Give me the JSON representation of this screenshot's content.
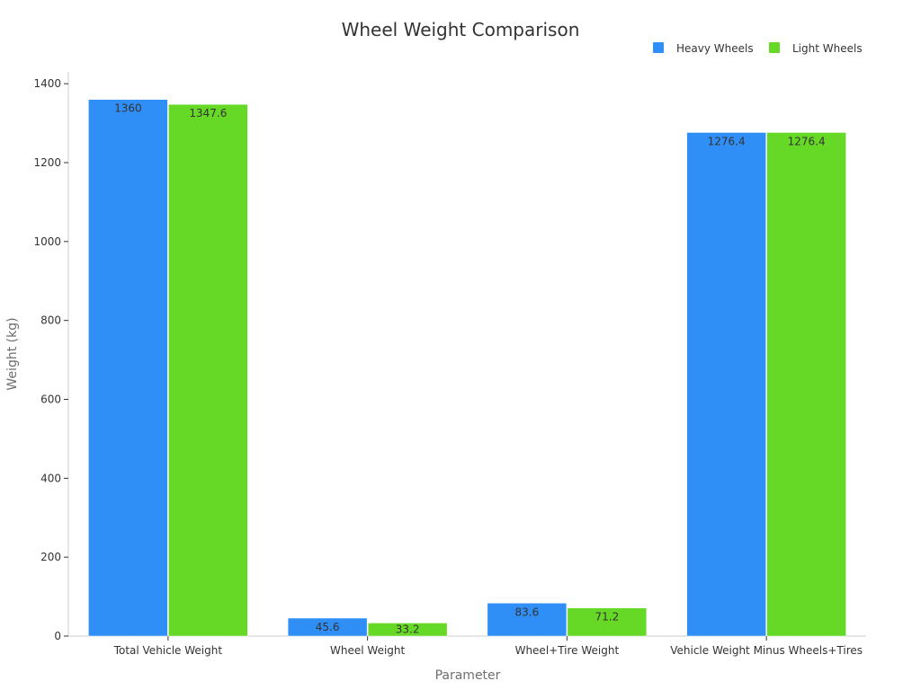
{
  "chart_data": {
    "type": "bar",
    "title": "Wheel Weight Comparison",
    "xlabel": "Parameter",
    "ylabel": "Weight (kg)",
    "categories": [
      "Total Vehicle Weight",
      "Wheel Weight",
      "Wheel+Tire Weight",
      "Vehicle Weight Minus Wheels+Tires"
    ],
    "series": [
      {
        "name": "Heavy Wheels",
        "color": "#2f8ff7",
        "values": [
          1360,
          45.6,
          83.6,
          1276.4
        ],
        "labels": [
          "1360",
          "45.6",
          "83.6",
          "1276.4"
        ]
      },
      {
        "name": "Light Wheels",
        "color": "#66d926",
        "values": [
          1347.6,
          33.2,
          71.2,
          1276.4
        ],
        "labels": [
          "1347.6",
          "33.2",
          "71.2",
          "1276.4"
        ]
      }
    ],
    "ylim": [
      0,
      1430
    ],
    "yticks": [
      0,
      200,
      400,
      600,
      800,
      1000,
      1200,
      1400
    ],
    "ytick_labels": [
      "0",
      "200",
      "400",
      "600",
      "800",
      "1000",
      "1200",
      "1400"
    ],
    "grid": false,
    "legend_position": "top-right"
  }
}
